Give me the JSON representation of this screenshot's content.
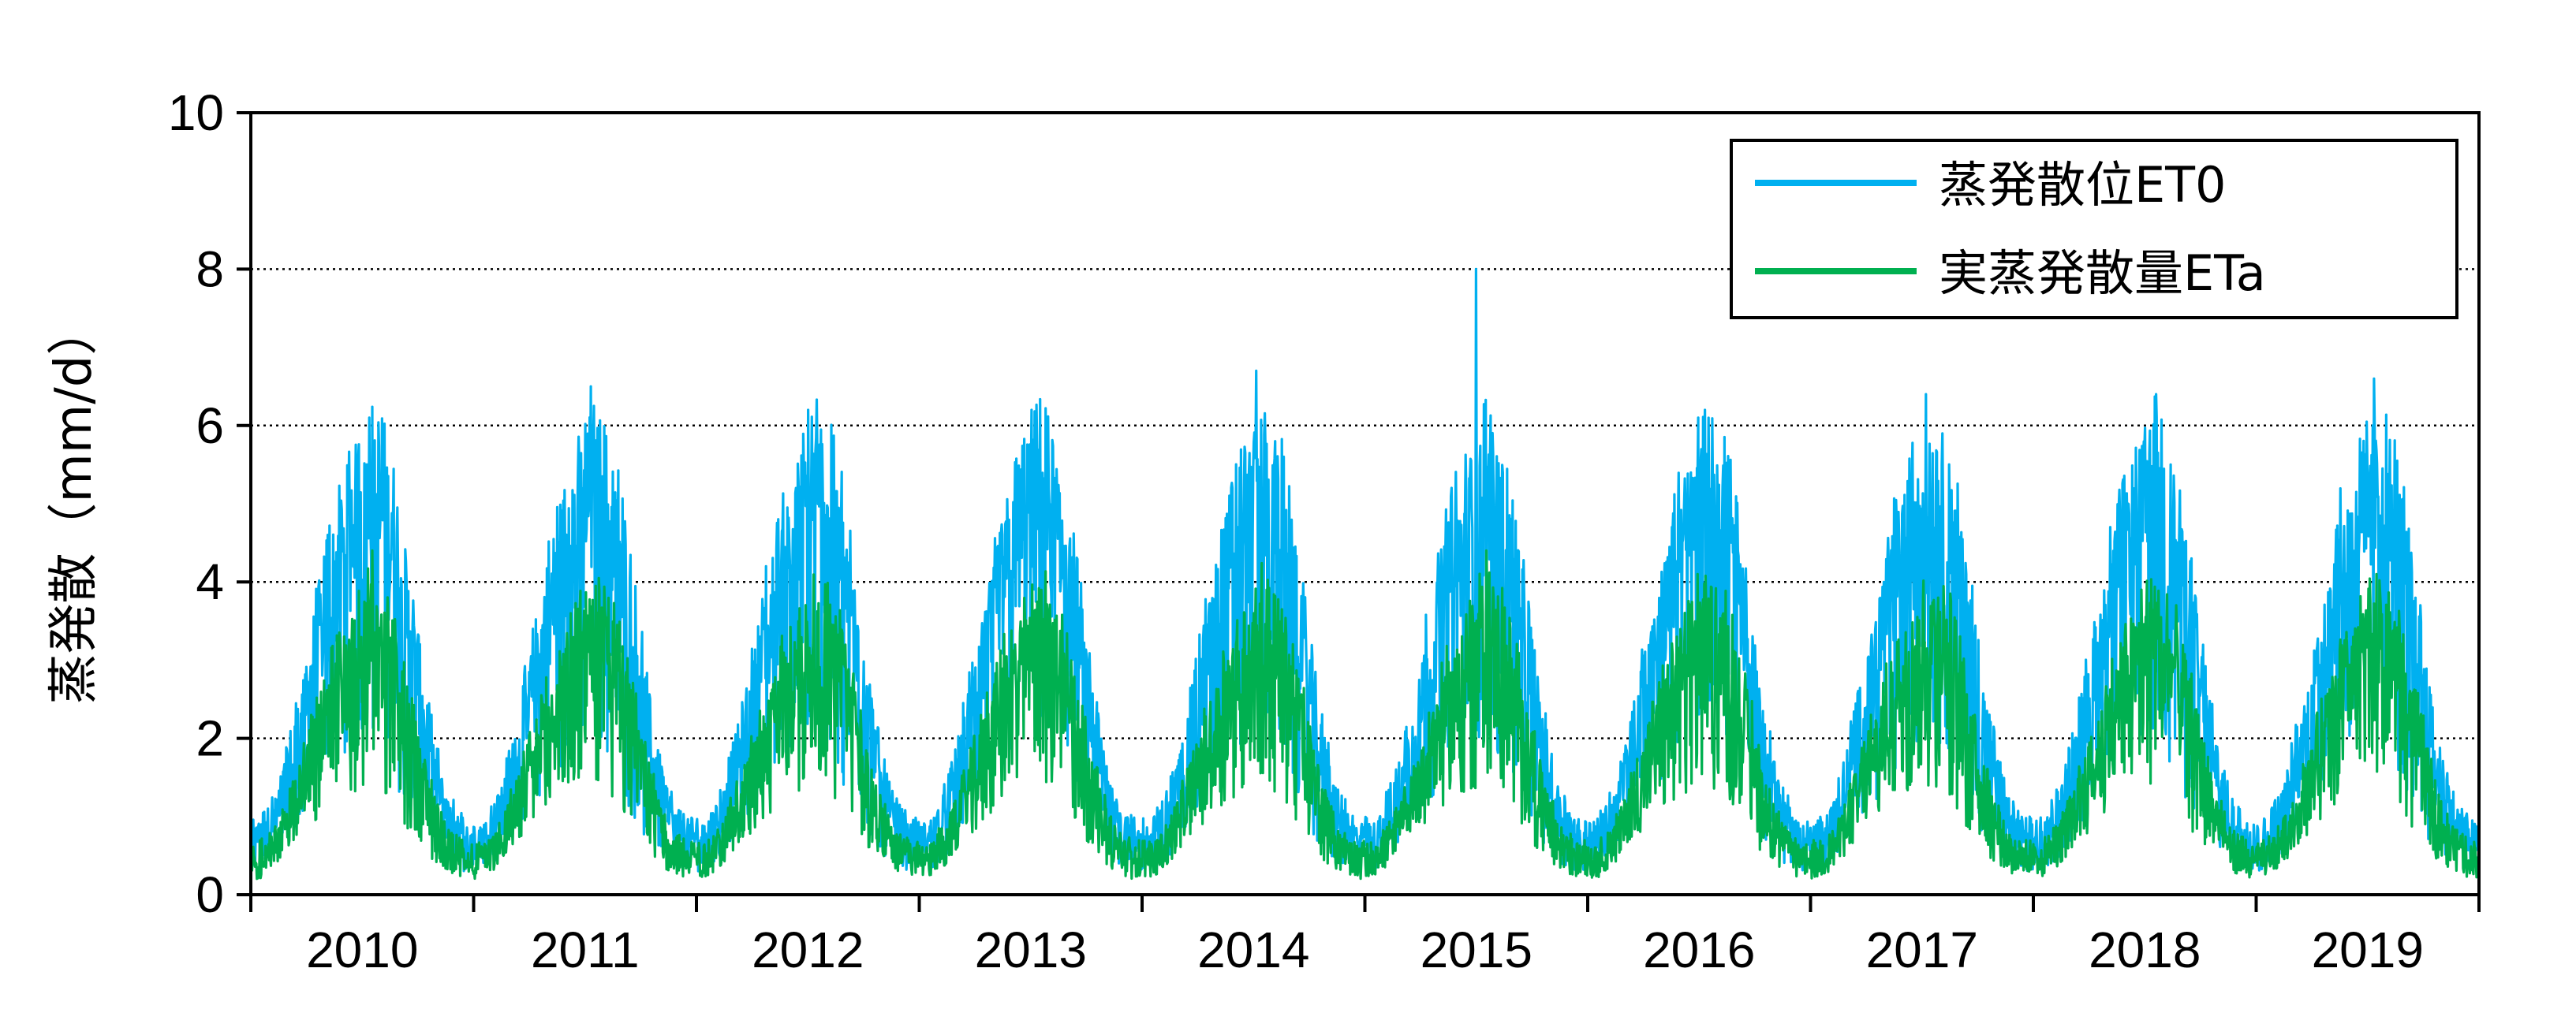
{
  "chart_data": {
    "type": "line",
    "title": "",
    "xlabel": "",
    "ylabel": "蒸発散（mm/d）",
    "ylim": [
      0,
      10
    ],
    "yticks": [
      0,
      2,
      4,
      6,
      8,
      10
    ],
    "grid": "dotted horizontal at 2, 4, 6, 8",
    "legend_position": "top-right",
    "categories": [
      "2010",
      "2011",
      "2012",
      "2013",
      "2014",
      "2015",
      "2016",
      "2017",
      "2018",
      "2019"
    ],
    "x_note": "daily values, Jan 2010 – Dec 2019",
    "series": [
      {
        "name": "蒸発散位ET0",
        "color": "#00b0f0",
        "monthly_envelope": {
          "min": [
            0.3,
            0.5,
            0.9,
            1.2,
            1.6,
            1.8,
            2.0,
            1.6,
            1.0,
            0.6,
            0.4,
            0.3
          ],
          "mean": [
            0.6,
            0.9,
            1.6,
            2.6,
            3.6,
            4.2,
            4.6,
            4.1,
            2.9,
            1.7,
            0.9,
            0.6
          ],
          "max": [
            1.0,
            1.5,
            2.6,
            3.9,
            5.2,
            5.8,
            6.4,
            5.9,
            4.4,
            2.6,
            1.4,
            1.0
          ]
        },
        "annual_peaks": [
          6.1,
          6.5,
          6.2,
          6.2,
          6.7,
          8.0,
          6.1,
          6.4,
          6.4,
          6.6
        ]
      },
      {
        "name": "実蒸発散量ETa",
        "color": "#00b050",
        "monthly_envelope": {
          "min": [
            0.2,
            0.4,
            0.7,
            0.9,
            1.2,
            1.3,
            1.4,
            1.2,
            0.8,
            0.5,
            0.3,
            0.2
          ],
          "mean": [
            0.4,
            0.6,
            1.1,
            1.6,
            2.2,
            2.6,
            2.9,
            2.6,
            1.9,
            1.1,
            0.6,
            0.4
          ],
          "max": [
            0.7,
            1.0,
            1.7,
            2.5,
            3.3,
            3.8,
            4.3,
            3.9,
            2.9,
            1.7,
            0.9,
            0.7
          ]
        },
        "annual_peaks": [
          4.4,
          3.4,
          3.2,
          2.9,
          3.9,
          4.4,
          4.1,
          3.0,
          3.9,
          4.1
        ]
      }
    ]
  },
  "legend": {
    "items": [
      {
        "label": "蒸発散位ET0",
        "color": "#00b0f0"
      },
      {
        "label": "実蒸発散量ETa",
        "color": "#00b050"
      }
    ]
  },
  "axis": {
    "ylabel": "蒸発散（mm/d）"
  }
}
